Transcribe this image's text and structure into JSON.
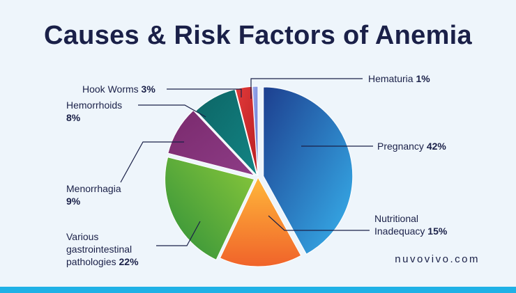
{
  "title": "Causes & Risk Factors of Anemia",
  "brand": "nuvovivo.com",
  "chart_data": {
    "type": "pie",
    "title": "Causes & Risk Factors of Anemia",
    "series": [
      {
        "name": "Pregnancy",
        "value": 42,
        "value_label": "42%",
        "color": "#2e7fc6"
      },
      {
        "name": "Nutritional Inadequacy",
        "value": 15,
        "value_label": "15%",
        "color": "#f7812a"
      },
      {
        "name": "Various gastrointestinal pathologies",
        "value": 22,
        "value_label": "22%",
        "color": "#5fb33a"
      },
      {
        "name": "Menorrhagia",
        "value": 9,
        "value_label": "9%",
        "color": "#7e3175"
      },
      {
        "name": "Hemorrhoids",
        "value": 8,
        "value_label": "8%",
        "color": "#0f7474"
      },
      {
        "name": "Hook Worms",
        "value": 3,
        "value_label": "3%",
        "color": "#d42c2c"
      },
      {
        "name": "Hematuria",
        "value": 1,
        "value_label": "1%",
        "color": "#7b8de0"
      }
    ],
    "legend": "none (labels with leader lines)"
  },
  "labels": {
    "pregnancy": {
      "name": "Pregnancy",
      "value": "42%"
    },
    "nutritional": {
      "name_line1": "Nutritional",
      "name_line2": "Inadequacy",
      "value": "15%"
    },
    "gastro": {
      "name_line1": "Various",
      "name_line2": "gastrointestinal",
      "name_line3": "pathologies",
      "value": "22%"
    },
    "menorrhagia": {
      "name": "Menorrhagia",
      "value": "9%"
    },
    "hemorrhoids": {
      "name": "Hemorrhoids",
      "value": "8%"
    },
    "hookworms": {
      "name": "Hook Worms",
      "value": "3%"
    },
    "hematuria": {
      "name": "Hematuria",
      "value": "1%"
    }
  }
}
